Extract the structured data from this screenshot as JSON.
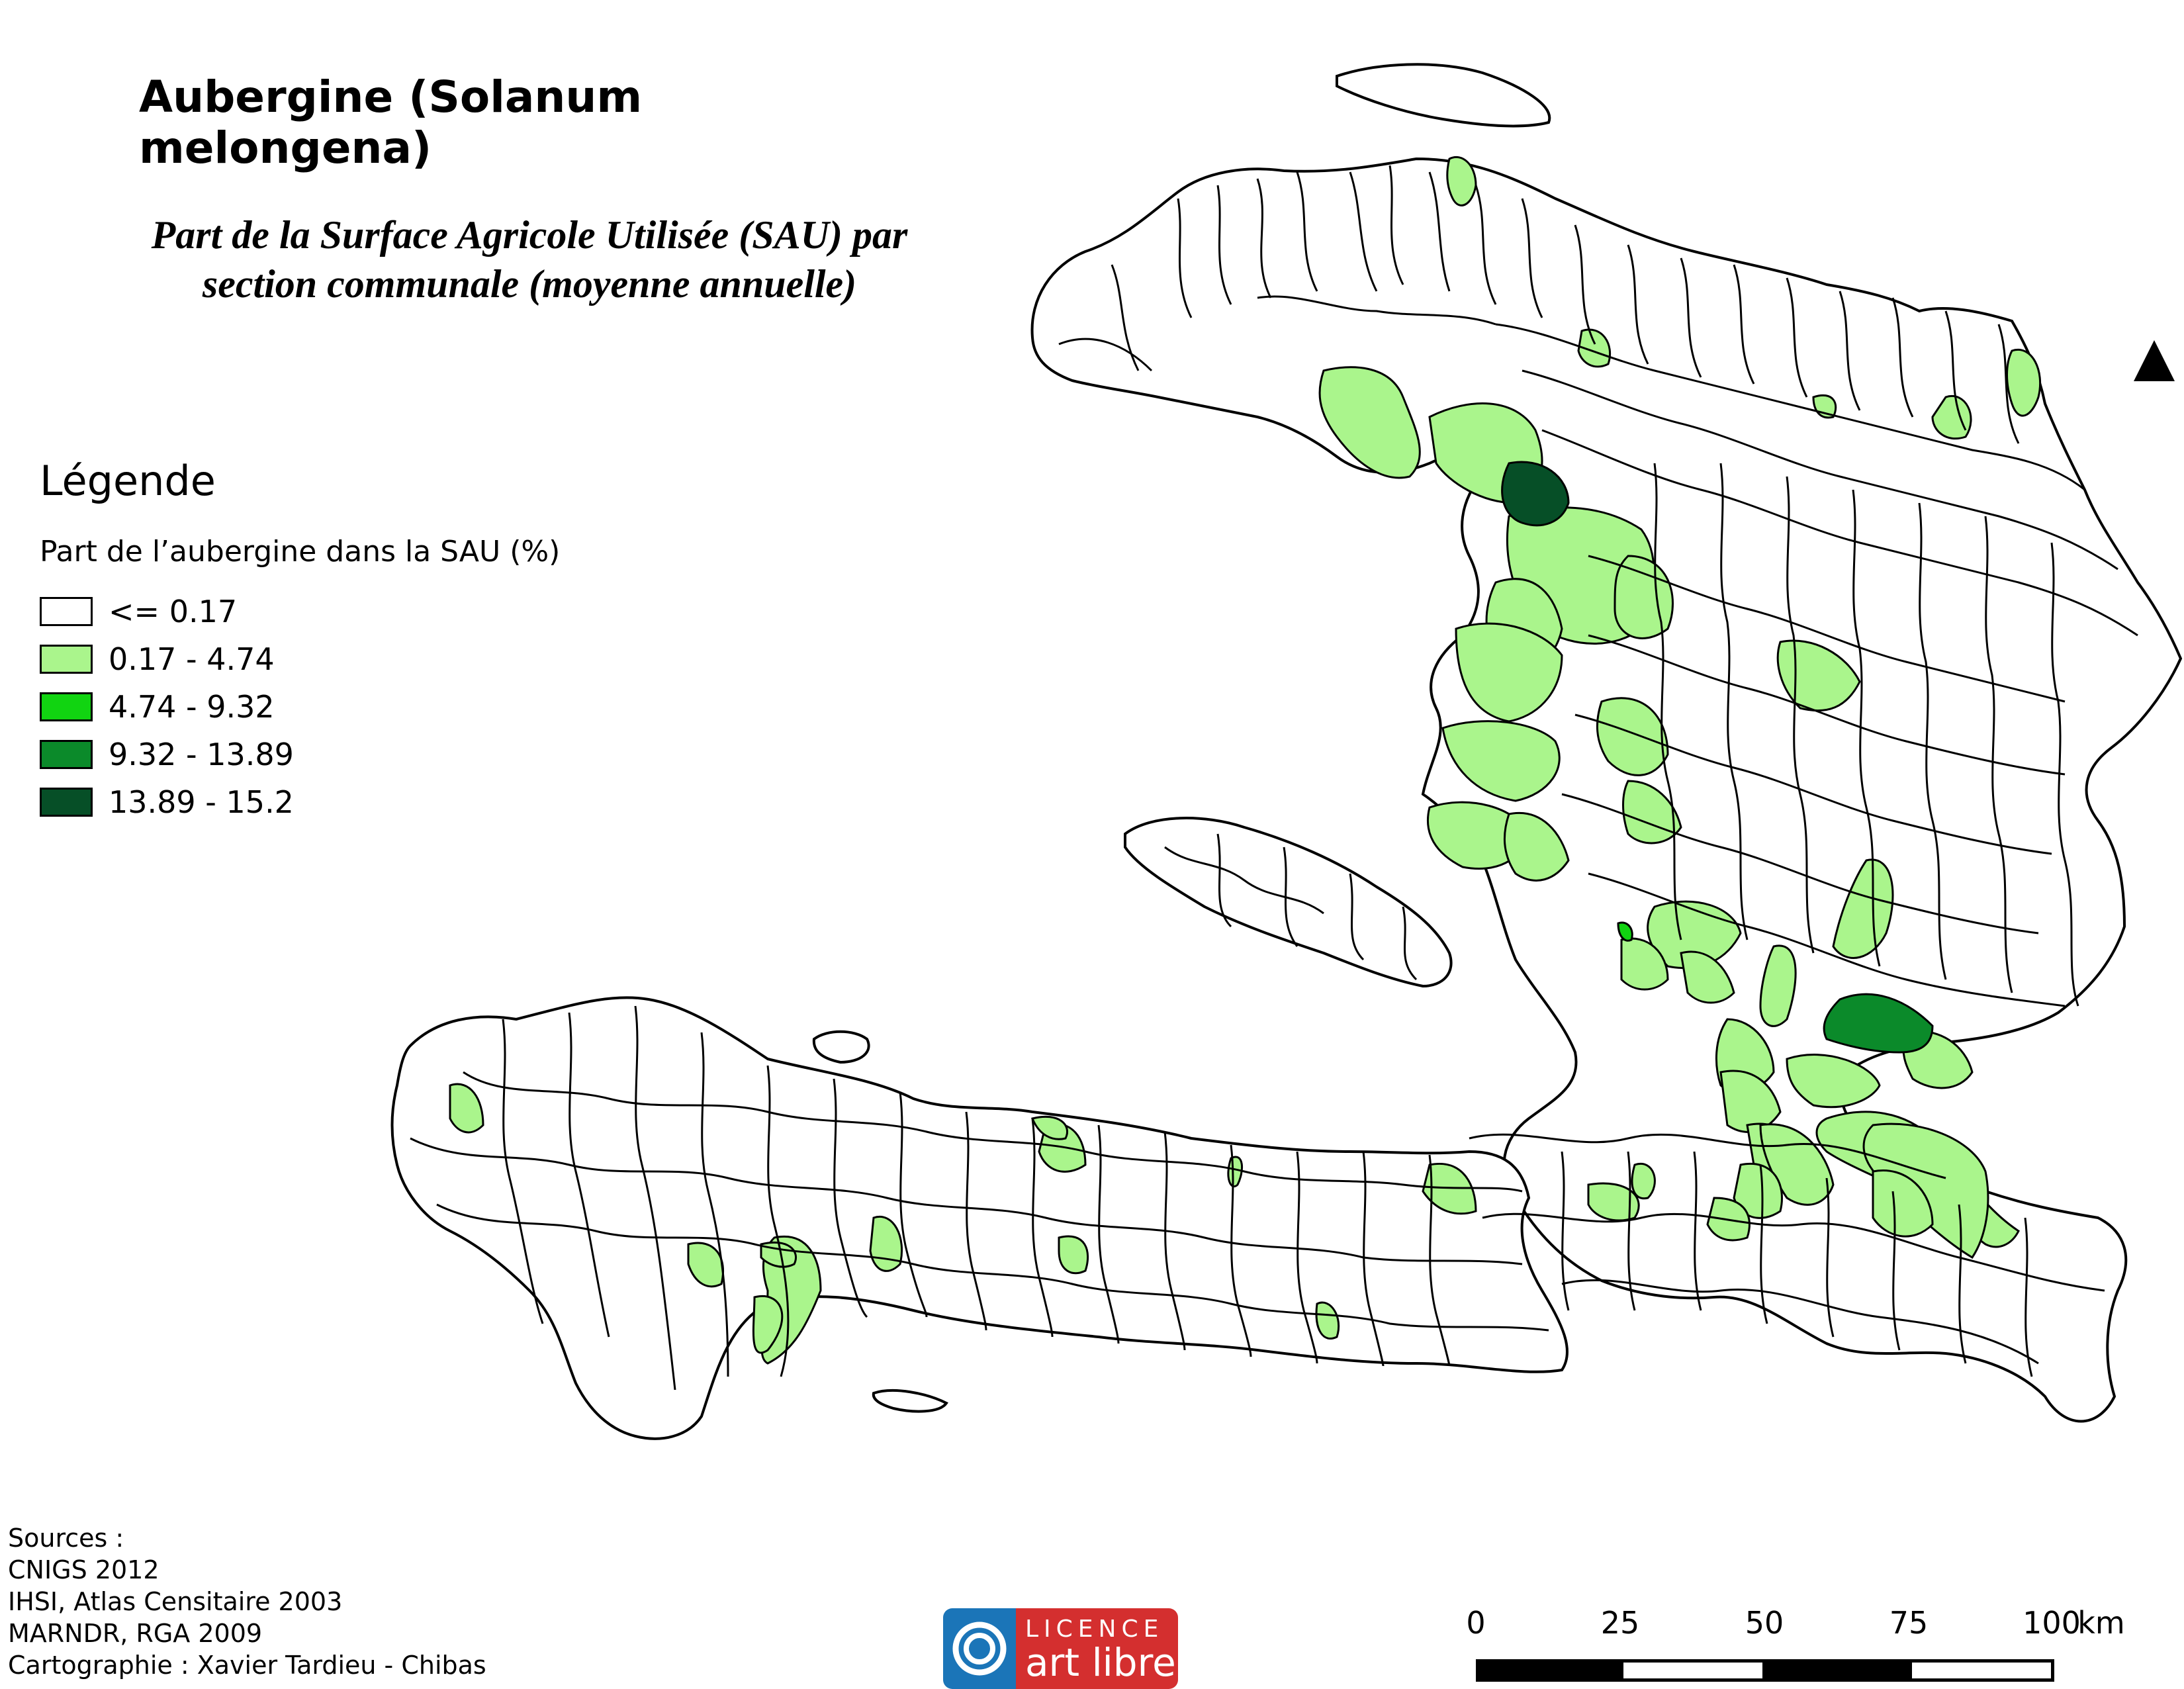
{
  "title": "Aubergine (Solanum melongena)",
  "subtitle_line1": "Part de la Surface Agricole Utilisée (SAU) par",
  "subtitle_line2": "section communale (moyenne annuelle)",
  "legend": {
    "title": "Légende",
    "subtitle": "Part de l’aubergine dans la SAU (%)",
    "classes": [
      {
        "label": "<= 0.17",
        "color": "#ffffff"
      },
      {
        "label": "0.17 - 4.74",
        "color": "#aaf58c"
      },
      {
        "label": "4.74 - 9.32",
        "color": "#11d411"
      },
      {
        "label": "9.32 - 13.89",
        "color": "#0b8a2a"
      },
      {
        "label": "13.89 - 15.2",
        "color": "#064f27"
      }
    ]
  },
  "sources": {
    "line1": "Sources :",
    "line2": "CNIGS 2012",
    "line3": "IHSI, Atlas Censitaire 2003",
    "line4": "MARNDR, RGA 2009",
    "line5": "Cartographie : Xavier Tardieu - Chibas"
  },
  "licence": {
    "top": "LICENCE",
    "bottom": "art libre"
  },
  "scale": {
    "labels": [
      "0",
      "25",
      "50",
      "75",
      "100"
    ],
    "unit": "km"
  },
  "north_arrow": "north-arrow-triangle"
}
